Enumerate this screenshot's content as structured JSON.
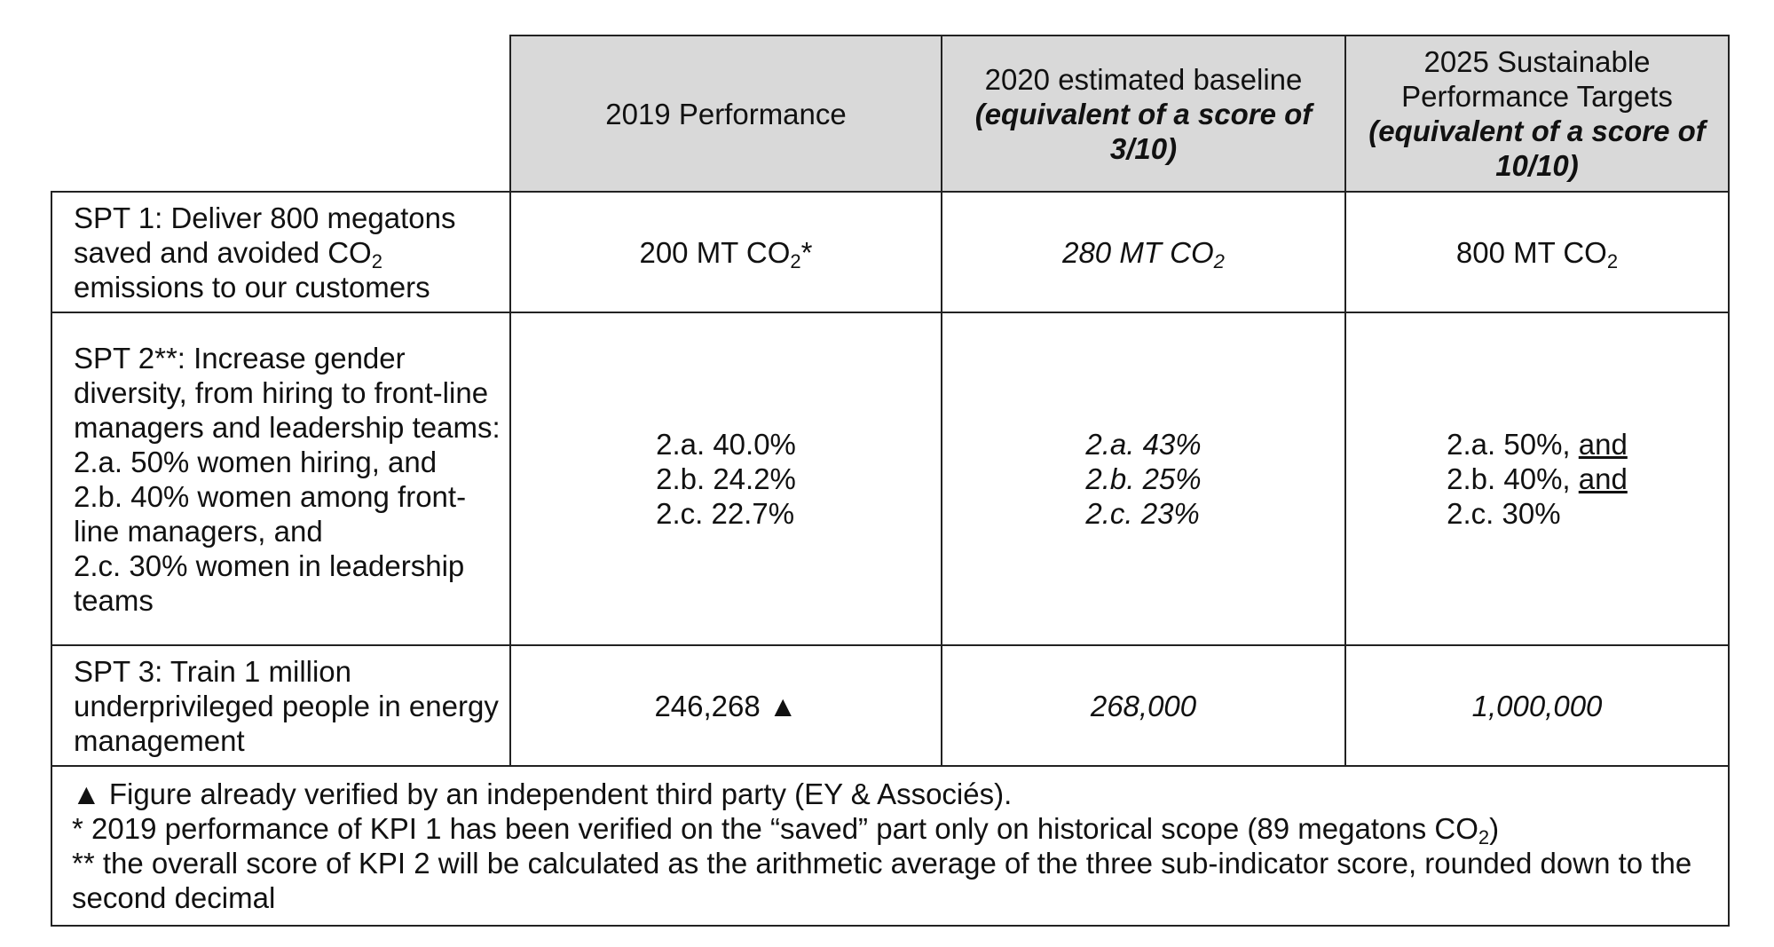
{
  "headers": {
    "col1": "2019 Performance",
    "col2_line1": "2020 estimated baseline",
    "col2_line2": "(equivalent of a score of 3/10)",
    "col3_line1": "2025 Sustainable Performance Targets",
    "col3_line2": "(equivalent of a score of 10/10)"
  },
  "rows": {
    "spt1": {
      "label_pre": "SPT 1: Deliver 800 megatons saved and avoided CO",
      "label_sub": "2",
      "label_post": " emissions to our customers",
      "perf_2019_pre": "200 MT CO",
      "perf_2019_sub": "2",
      "perf_2019_post": "*",
      "baseline_2020_pre": "280 MT CO",
      "baseline_2020_sub": "2",
      "target_2025_pre": "800 MT CO",
      "target_2025_sub": "2"
    },
    "spt2": {
      "label_lines": [
        "SPT 2**: Increase gender diversity, from hiring to front-line managers and leadership teams:",
        "2.a. 50% women hiring, and",
        "2.b. 40% women among front-line managers, and",
        "2.c. 30% women in leadership teams"
      ],
      "perf_2019": [
        "2.a. 40.0%",
        "2.b. 24.2%",
        "2.c. 22.7%"
      ],
      "baseline_2020": [
        "2.a. 43%",
        "2.b. 25%",
        "2.c. 23%"
      ],
      "target_2025": {
        "a": "2.a. 50%,",
        "b": "2.b. 40%,",
        "c": "2.c. 30%",
        "conj": "and"
      }
    },
    "spt3": {
      "label": "SPT 3: Train 1 million underprivileged people in energy management",
      "perf_2019": "246,268 ▲",
      "baseline_2020": "268,000",
      "target_2025": "1,000,000"
    }
  },
  "notes": {
    "line1": "▲ Figure already verified by an independent third party (EY & Associés).",
    "line2_pre": "* 2019 performance of KPI 1 has been verified on the “saved” part only on historical scope (89 megatons CO",
    "line2_sub": "2",
    "line2_post": ")",
    "line3": "** the overall score of KPI 2 will be calculated as the arithmetic average of the three sub-indicator score, rounded down to the second decimal"
  }
}
